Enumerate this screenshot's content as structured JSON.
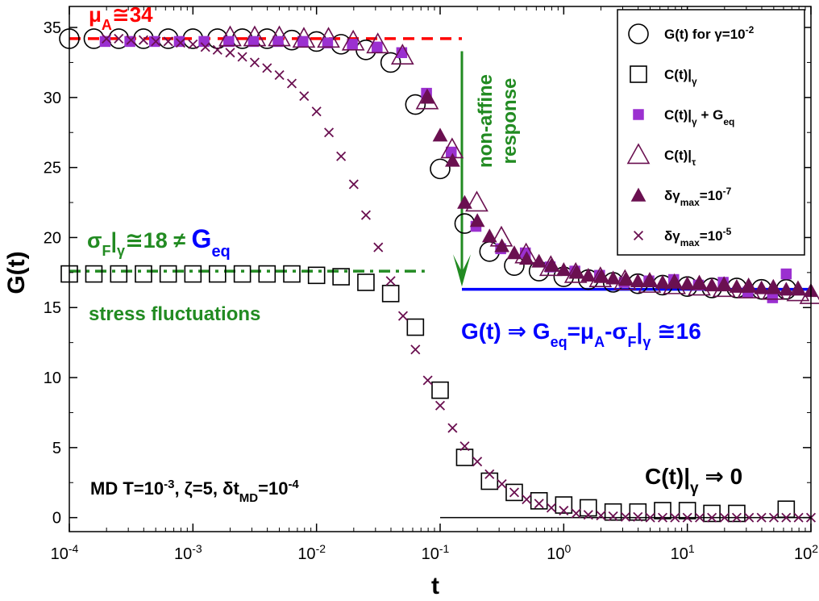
{
  "chart_data": {
    "type": "scatter",
    "xscale": "log",
    "xlim": [
      0.0001,
      100
    ],
    "ylim": [
      -1,
      36.5
    ],
    "xlabel": "t",
    "ylabel": "G(t)",
    "xticks": [
      {
        "value": 0.0001,
        "base": "10",
        "exp": "-4"
      },
      {
        "value": 0.001,
        "base": "10",
        "exp": "-3"
      },
      {
        "value": 0.01,
        "base": "10",
        "exp": "-2"
      },
      {
        "value": 0.1,
        "base": "10",
        "exp": "-1"
      },
      {
        "value": 1,
        "base": "10",
        "exp": "0"
      },
      {
        "value": 10,
        "base": "10",
        "exp": "1"
      },
      {
        "value": 100,
        "base": "10",
        "exp": "2"
      }
    ],
    "yticks": [
      0,
      5,
      10,
      15,
      20,
      25,
      30,
      35
    ],
    "legend": [
      {
        "marker": "circle-open",
        "color": "#000000",
        "text": "G(t) for γ=10",
        "sup": "-2"
      },
      {
        "marker": "square-open",
        "color": "#000000",
        "text": "C(t)|",
        "sub": "γ"
      },
      {
        "marker": "square-filled",
        "color": "#9b30d0",
        "text": "C(t)|",
        "sub": "γ",
        "rest": " + G",
        "sub2": "eq"
      },
      {
        "marker": "triangle-open",
        "color": "#6a1050",
        "text": "C(t)|",
        "sub": "τ"
      },
      {
        "marker": "triangle-filled",
        "color": "#6a1050",
        "text": "δγ",
        "sub": "max",
        "rest": "=10",
        "sup": "-7"
      },
      {
        "marker": "cross",
        "color": "#6a1050",
        "text": "δγ",
        "sub": "max",
        "rest": "=10",
        "sup": "-5"
      }
    ],
    "series": [
      {
        "name": "G(t) for γ=10^-2",
        "marker": "circle-open",
        "color": "#000000",
        "x": [
          0.0001,
          0.000158,
          0.000251,
          0.000398,
          0.000631,
          0.001,
          0.00158,
          0.00251,
          0.00398,
          0.00631,
          0.01,
          0.0158,
          0.0251,
          0.0398,
          0.0631,
          0.1,
          0.158,
          0.251,
          0.398,
          0.631,
          1,
          1.58,
          2.51,
          3.98,
          6.31,
          10,
          15.8,
          25.1,
          39.8,
          63.1
        ],
        "y": [
          34.2,
          34.2,
          34.2,
          34.2,
          34.2,
          34.2,
          34.2,
          34.2,
          34.2,
          34.1,
          34.0,
          33.8,
          33.4,
          32.5,
          29.5,
          24.9,
          21.0,
          19.0,
          18.0,
          17.6,
          17.2,
          17.0,
          16.8,
          16.7,
          16.6,
          16.5,
          16.4,
          16.4,
          16.3,
          16.3
        ]
      },
      {
        "name": "C(t)|γ",
        "marker": "square-open",
        "color": "#000000",
        "x": [
          0.0001,
          0.000158,
          0.000251,
          0.000398,
          0.000631,
          0.001,
          0.00158,
          0.00251,
          0.00398,
          0.00631,
          0.01,
          0.0158,
          0.0251,
          0.0398,
          0.0631,
          0.1,
          0.158,
          0.251,
          0.398,
          0.631,
          1,
          1.58,
          2.51,
          3.98,
          6.31,
          10,
          15.8,
          25.1,
          63.1
        ],
        "y": [
          17.4,
          17.4,
          17.4,
          17.4,
          17.4,
          17.4,
          17.4,
          17.4,
          17.4,
          17.4,
          17.3,
          17.2,
          16.8,
          16.0,
          13.6,
          9.1,
          4.3,
          2.6,
          1.8,
          1.2,
          0.9,
          0.7,
          0.4,
          0.4,
          0.5,
          0.5,
          0.3,
          0.3,
          0.6
        ]
      },
      {
        "name": "C(t)|γ + Geq",
        "marker": "square-filled",
        "color": "#9b30d0",
        "x": [
          0.000195,
          0.000309,
          0.000489,
          0.000776,
          0.00123,
          0.00195,
          0.00309,
          0.00489,
          0.00776,
          0.0123,
          0.0195,
          0.0309,
          0.0489,
          0.0776,
          0.123,
          0.195,
          0.309,
          0.489,
          0.776,
          1.23,
          1.95,
          3.09,
          4.89,
          7.76,
          12.3,
          19.5,
          30.9,
          48.9,
          63.1
        ],
        "y": [
          34.0,
          34.0,
          34.0,
          34.0,
          34.0,
          34.0,
          34.0,
          34.0,
          34.0,
          33.9,
          33.8,
          33.6,
          33.2,
          30.3,
          26.1,
          20.8,
          19.2,
          18.9,
          17.9,
          17.6,
          17.3,
          16.8,
          16.9,
          17.0,
          16.6,
          16.8,
          16.1,
          15.7,
          17.4
        ]
      },
      {
        "name": "C(t)|τ",
        "marker": "triangle-open",
        "color": "#6a1050",
        "x": [
          0.002,
          0.00316,
          0.005,
          0.0079,
          0.0125,
          0.0198,
          0.0313,
          0.0496,
          0.0786,
          0.125,
          0.198,
          0.313,
          0.496,
          0.786,
          1.25,
          1.98,
          3.13,
          4.96,
          7.86,
          12.5,
          19.8,
          31.3,
          49.6,
          78.6,
          100
        ],
        "y": [
          34.3,
          34.3,
          34.3,
          34.2,
          34.2,
          34.0,
          33.8,
          33.0,
          29.8,
          26.3,
          22.5,
          20.0,
          18.8,
          17.9,
          17.4,
          17.1,
          16.9,
          16.7,
          16.6,
          16.5,
          16.4,
          16.3,
          16.2,
          16.1,
          15.9
        ]
      },
      {
        "name": "δγmax=10^-7",
        "marker": "triangle-filled",
        "color": "#6a1050",
        "x": [
          0.0795,
          0.1,
          0.126,
          0.158,
          0.2,
          0.251,
          0.316,
          0.398,
          0.501,
          0.631,
          0.794,
          1,
          1.26,
          1.58,
          2,
          2.51,
          3.16,
          3.98,
          5.01,
          6.31,
          7.94,
          10,
          12.6,
          15.8,
          20,
          25.1,
          31.6,
          39.8,
          50.1,
          63.1,
          79.4,
          100
        ],
        "y": [
          30.0,
          27.3,
          25.5,
          22.5,
          21.2,
          20.1,
          19.4,
          18.9,
          18.5,
          18.3,
          18.0,
          17.7,
          17.5,
          17.3,
          17.2,
          17.1,
          17.0,
          16.9,
          16.9,
          16.8,
          16.8,
          16.7,
          16.7,
          16.6,
          16.6,
          16.5,
          16.5,
          16.4,
          16.4,
          16.3,
          16.3,
          16.2
        ]
      },
      {
        "name": "δγmax=10^-5",
        "marker": "cross",
        "color": "#6a1050",
        "x": [
          0.0002,
          0.000251,
          0.000316,
          0.000398,
          0.000501,
          0.000631,
          0.000794,
          0.001,
          0.00126,
          0.00158,
          0.002,
          0.00251,
          0.00316,
          0.00398,
          0.00501,
          0.00631,
          0.00794,
          0.01,
          0.0126,
          0.0158,
          0.02,
          0.0251,
          0.0316,
          0.0398,
          0.0501,
          0.0631,
          0.0794,
          0.1,
          0.126,
          0.158,
          0.2,
          0.251,
          0.316,
          0.398,
          0.501,
          0.631,
          0.794,
          1,
          1.26,
          1.58,
          2,
          2.51,
          3.16,
          3.98,
          5.01,
          6.31,
          7.94,
          10,
          12.6,
          15.8,
          20,
          25.1,
          31.6,
          39.8,
          50.1,
          63.1,
          79.4,
          100
        ],
        "y": [
          34.2,
          34.2,
          34.1,
          34.1,
          34.0,
          34.0,
          33.9,
          33.8,
          33.6,
          33.4,
          33.2,
          32.9,
          32.5,
          32.1,
          31.6,
          31.0,
          30.1,
          29.0,
          27.5,
          25.8,
          23.8,
          21.6,
          19.3,
          16.9,
          14.4,
          12.0,
          9.8,
          8.0,
          6.4,
          5.1,
          4.0,
          3.1,
          2.4,
          1.8,
          1.3,
          1.0,
          0.7,
          0.5,
          0.3,
          0.2,
          0.15,
          0.1,
          0.05,
          0.05,
          0.0,
          0.0,
          0.0,
          0.0,
          0.0,
          0.0,
          0.0,
          0.0,
          0.0,
          0.0,
          0.0,
          0.0,
          0.0,
          0.0
        ]
      }
    ],
    "reference_lines": [
      {
        "name": "mu_A",
        "y": 34.2,
        "x_from": 0.0001,
        "x_to": 0.15,
        "style": "dashed",
        "color": "#ff0000"
      },
      {
        "name": "sigma_F",
        "y": 17.6,
        "x_from": 0.0001,
        "x_to": 0.075,
        "style": "dash-dot",
        "color": "#228b22"
      },
      {
        "name": "G_eq",
        "y": 16.3,
        "x_from": 0.15,
        "x_to": 100,
        "style": "solid",
        "color": "#0000ff"
      },
      {
        "name": "zero",
        "y": 0,
        "x_from": 0.1,
        "x_to": 100,
        "style": "solid",
        "color": "#000000"
      }
    ],
    "arrow": {
      "x": 0.15,
      "y_from": 33.3,
      "y_to": 16.5,
      "color": "#228b22"
    },
    "annotations": {
      "mu_a": {
        "pre": "μ",
        "sub": "A",
        "rest": "≅34",
        "color": "#ff0000"
      },
      "sigma_f": {
        "pre": "σ",
        "sub": "F",
        "mid": "|",
        "sub2": "γ",
        "rest": "≅18 ≠ ",
        "g": "G",
        "gsub": "eq",
        "color": "#228b22",
        "gcolor": "#0000ff"
      },
      "stress": {
        "text": "stress fluctuations",
        "color": "#228b22"
      },
      "nonaffine": {
        "line1": "non-affine",
        "line2": "response",
        "color": "#228b22"
      },
      "geq": {
        "p1": "G(t) ⇒ G",
        "s1": "eq",
        "p2": "=μ",
        "s2": "A",
        "p3": "-σ",
        "s3": "F",
        "p4": "|",
        "s4": "γ",
        "p5": " ≅16",
        "color": "#0000ff"
      },
      "md": {
        "p1": "MD T=10",
        "sup1": "-3",
        "p2": ", ζ=5, δt",
        "sub1": "MD",
        "p3": "=10",
        "sup2": "-4",
        "color": "#000000"
      },
      "c_to_zero": {
        "p1": "C(t)|",
        "sub": "γ",
        "p2": " ⇒ 0",
        "color": "#000000"
      }
    }
  }
}
